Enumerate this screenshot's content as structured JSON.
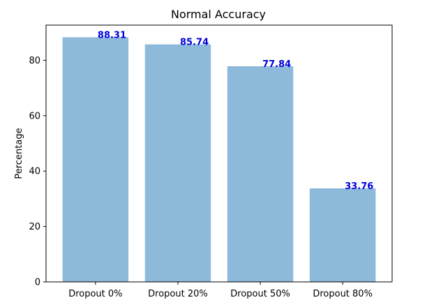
{
  "chart_data": {
    "type": "bar",
    "title": "Normal Accuracy",
    "xlabel": "",
    "ylabel": "Percentage",
    "categories": [
      "Dropout 0%",
      "Dropout 20%",
      "Dropout 50%",
      "Dropout 80%"
    ],
    "values": [
      88.31,
      85.74,
      77.84,
      33.76
    ],
    "value_labels": [
      "88.31",
      "85.74",
      "77.84",
      "33.76"
    ],
    "ylim": [
      0,
      92.7
    ],
    "yticks": [
      0,
      20,
      40,
      60,
      80
    ],
    "ytick_labels": [
      "0",
      "20",
      "40",
      "60",
      "80"
    ],
    "grid": false,
    "bar_color": "#8db9da",
    "label_color": "#0000dd"
  }
}
